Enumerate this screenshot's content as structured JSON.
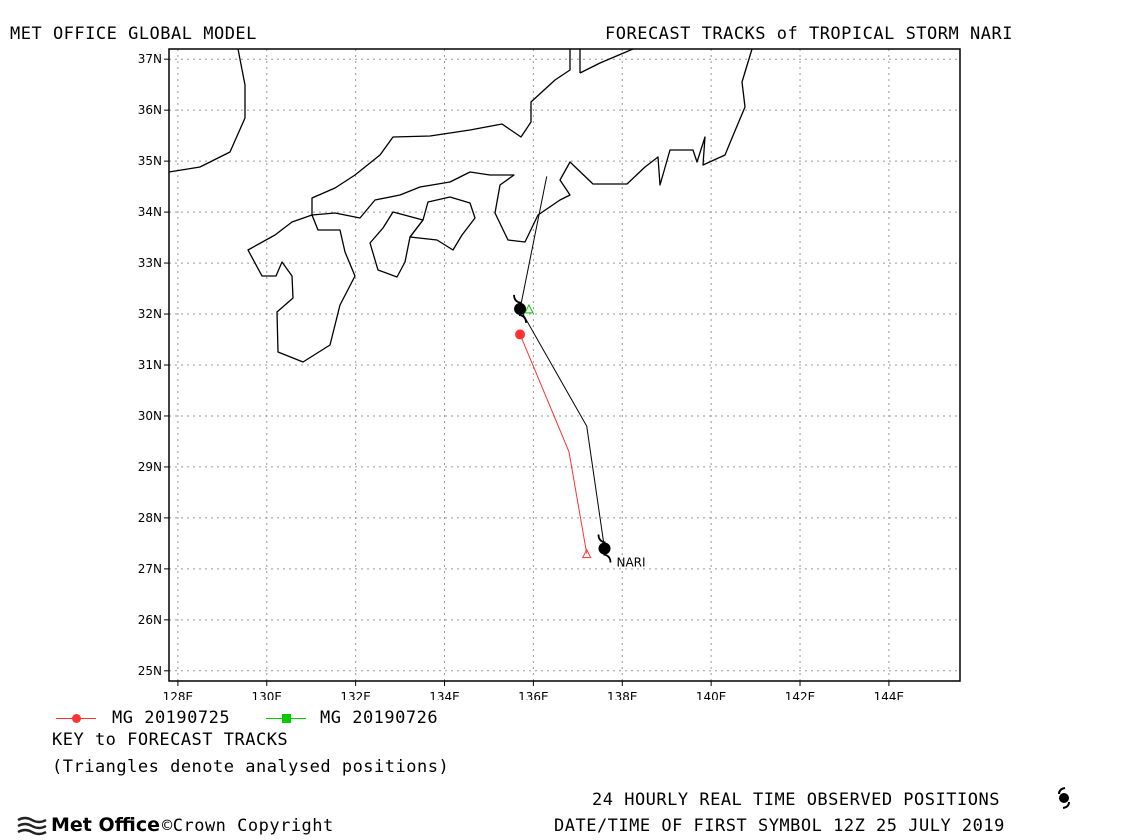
{
  "header": {
    "left_title": "MET OFFICE GLOBAL MODEL",
    "right_title": "FORECAST TRACKS of TROPICAL STORM NARI"
  },
  "map": {
    "lon_range": [
      127.8,
      145.6
    ],
    "lat_range": [
      24.8,
      37.2
    ],
    "lon_ticks": [
      "128E",
      "130E",
      "132E",
      "134E",
      "136E",
      "138E",
      "140E",
      "142E",
      "144E"
    ],
    "lat_ticks": [
      "25N",
      "26N",
      "27N",
      "28N",
      "29N",
      "30N",
      "31N",
      "32N",
      "33N",
      "34N",
      "35N",
      "36N",
      "37N"
    ],
    "grid": "dotted",
    "storm_label": "NARI",
    "observed_track": [
      [
        137.6,
        27.4
      ],
      [
        135.7,
        32.1
      ]
    ],
    "tracks": [
      {
        "name": "MG 20190725",
        "color": "#ff3333",
        "points": [
          [
            137.2,
            27.3
          ],
          [
            136.8,
            29.3
          ],
          [
            135.7,
            31.6
          ]
        ],
        "analysed": [
          137.2,
          27.3
        ],
        "marker": "circle"
      },
      {
        "name": "MG 20190726",
        "color": "#00cc00",
        "points": [
          [
            135.9,
            32.1
          ],
          [
            135.7,
            32.1
          ],
          [
            135.9,
            32.0
          ],
          [
            136.3,
            34.7
          ]
        ],
        "analysed": [
          135.9,
          32.1
        ],
        "marker": "square"
      }
    ],
    "symbols": [
      [
        137.6,
        27.4
      ],
      [
        135.7,
        32.1
      ]
    ],
    "colors": {
      "coast": "#000000",
      "grid": "#999999",
      "track_actual": "#000000"
    }
  },
  "legend": {
    "items": [
      {
        "label": "MG 20190725",
        "color": "#ff3333",
        "marker": "circle"
      },
      {
        "label": "MG 20190726",
        "color": "#00cc00",
        "marker": "square"
      }
    ],
    "key_title": "KEY to FORECAST TRACKS",
    "key_note": "(Triangles denote analysed positions)"
  },
  "footer": {
    "brand": "Met Office",
    "copyright": "©Crown Copyright",
    "observed_note": "24 HOURLY REAL TIME OBSERVED POSITIONS",
    "first_symbol": "DATE/TIME OF FIRST SYMBOL 12Z 25 JULY 2019"
  }
}
